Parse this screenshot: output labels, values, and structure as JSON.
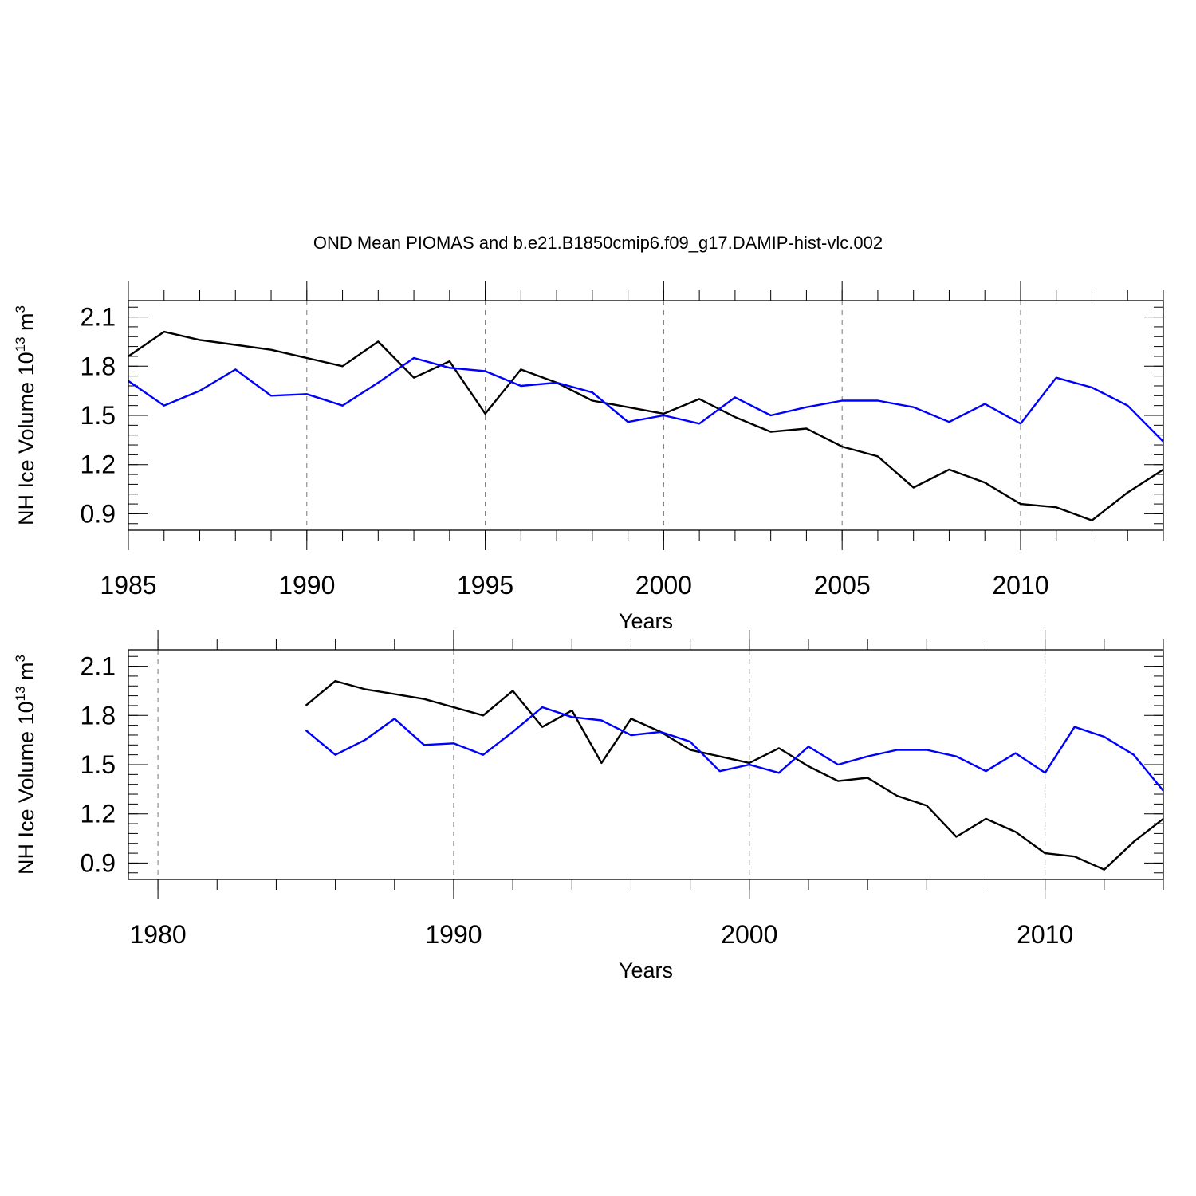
{
  "figure_title": "OND Mean PIOMAS and b.e21.B1850cmip6.f09_g17.DAMIP-hist-vlc.002",
  "chart_data": [
    {
      "type": "line",
      "xlabel": "Years",
      "ylabel_main": "NH Ice Volume 10",
      "ylabel_sup1": "13",
      "ylabel_mid": " m",
      "ylabel_sup2": "3",
      "xlim": [
        1985,
        2014
      ],
      "ylim": [
        0.8,
        2.2
      ],
      "xticks": [
        1985,
        1990,
        1995,
        2000,
        2005,
        2010
      ],
      "xminor": 1,
      "yticks": [
        0.9,
        1.2,
        1.5,
        1.8,
        2.1
      ],
      "yminor": 0.06,
      "grid": "x-major-dashed",
      "x": [
        1985,
        1986,
        1987,
        1988,
        1989,
        1990,
        1991,
        1992,
        1993,
        1994,
        1995,
        1996,
        1997,
        1998,
        1999,
        2000,
        2001,
        2002,
        2003,
        2004,
        2005,
        2006,
        2007,
        2008,
        2009,
        2010,
        2011,
        2012,
        2013,
        2014
      ],
      "series": [
        {
          "color": "#000000",
          "values": [
            1.86,
            2.01,
            1.96,
            1.93,
            1.9,
            1.85,
            1.8,
            1.95,
            1.73,
            1.83,
            1.51,
            1.78,
            1.7,
            1.59,
            1.55,
            1.51,
            1.6,
            1.49,
            1.4,
            1.42,
            1.31,
            1.25,
            1.06,
            1.17,
            1.09,
            0.96,
            0.94,
            0.86,
            1.03,
            1.17
          ]
        },
        {
          "color": "#0000ff",
          "values": [
            1.71,
            1.56,
            1.65,
            1.78,
            1.62,
            1.63,
            1.56,
            1.7,
            1.85,
            1.79,
            1.77,
            1.68,
            1.7,
            1.64,
            1.46,
            1.5,
            1.45,
            1.61,
            1.5,
            1.55,
            1.59,
            1.59,
            1.55,
            1.46,
            1.57,
            1.45,
            1.73,
            1.67,
            1.56,
            1.34
          ]
        }
      ]
    },
    {
      "type": "line",
      "xlabel": "Years",
      "ylabel_main": "NH Ice Volume 10",
      "ylabel_sup1": "13",
      "ylabel_mid": " m",
      "ylabel_sup2": "3",
      "xlim": [
        1979,
        2014
      ],
      "ylim": [
        0.8,
        2.2
      ],
      "xticks": [
        1980,
        1990,
        2000,
        2010
      ],
      "xminor": 2,
      "yticks": [
        0.9,
        1.2,
        1.5,
        1.8,
        2.1
      ],
      "yminor": 0.06,
      "grid": "x-major-dashed",
      "x": [
        1985,
        1986,
        1987,
        1988,
        1989,
        1990,
        1991,
        1992,
        1993,
        1994,
        1995,
        1996,
        1997,
        1998,
        1999,
        2000,
        2001,
        2002,
        2003,
        2004,
        2005,
        2006,
        2007,
        2008,
        2009,
        2010,
        2011,
        2012,
        2013,
        2014
      ],
      "series": [
        {
          "color": "#000000",
          "values": [
            1.86,
            2.01,
            1.96,
            1.93,
            1.9,
            1.85,
            1.8,
            1.95,
            1.73,
            1.83,
            1.51,
            1.78,
            1.7,
            1.59,
            1.55,
            1.51,
            1.6,
            1.49,
            1.4,
            1.42,
            1.31,
            1.25,
            1.06,
            1.17,
            1.09,
            0.96,
            0.94,
            0.86,
            1.03,
            1.17
          ]
        },
        {
          "color": "#0000ff",
          "values": [
            1.71,
            1.56,
            1.65,
            1.78,
            1.62,
            1.63,
            1.56,
            1.7,
            1.85,
            1.79,
            1.77,
            1.68,
            1.7,
            1.64,
            1.46,
            1.5,
            1.45,
            1.61,
            1.5,
            1.55,
            1.59,
            1.59,
            1.55,
            1.46,
            1.57,
            1.45,
            1.73,
            1.67,
            1.56,
            1.34
          ]
        }
      ]
    }
  ]
}
